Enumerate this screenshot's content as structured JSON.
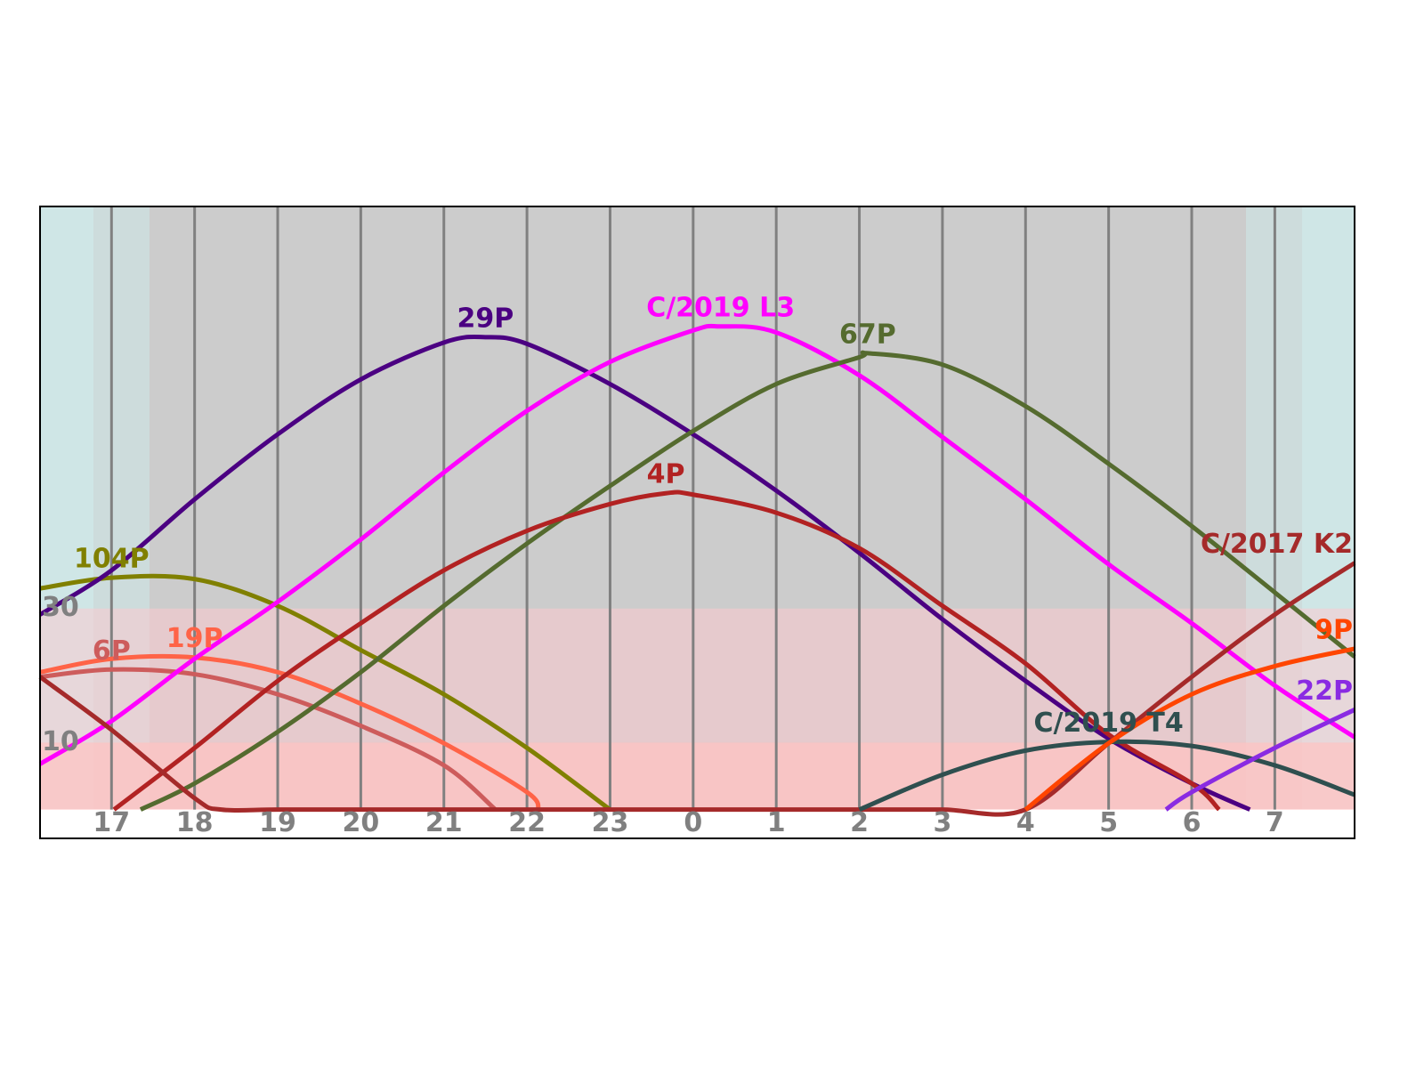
{
  "chart_data": {
    "type": "line",
    "xlim": [
      16.14,
      31.96
    ],
    "ylim": [
      -4.3,
      90
    ],
    "xticks": [
      17,
      18,
      19,
      20,
      21,
      22,
      23,
      {
        "value": 24,
        "label": "0"
      },
      {
        "value": 25,
        "label": "1"
      },
      {
        "value": 26,
        "label": "2"
      },
      {
        "value": 27,
        "label": "3"
      },
      {
        "value": 28,
        "label": "4"
      },
      {
        "value": 29,
        "label": "5"
      },
      {
        "value": 30,
        "label": "6"
      },
      {
        "value": 31,
        "label": "7"
      }
    ],
    "yticks": [
      10,
      30
    ],
    "grid": true,
    "series": [
      {
        "name": "104P",
        "color": "#808000",
        "x": [
          16.14,
          17,
          18,
          19,
          20,
          21,
          22,
          23
        ],
        "values": [
          33,
          34.6,
          34.4,
          30.4,
          23.8,
          17.2,
          9.2,
          0
        ]
      },
      {
        "name": "19P",
        "color": "#ff6347",
        "x": [
          16.14,
          17,
          18,
          19,
          20,
          21,
          22,
          22.14
        ],
        "values": [
          20.5,
          22.5,
          22.7,
          20.5,
          15.8,
          9.9,
          2.6,
          0
        ]
      },
      {
        "name": "6P",
        "color": "#cd5c5c",
        "x": [
          16.14,
          17,
          18,
          19,
          20,
          21,
          21.62
        ],
        "values": [
          19.8,
          20.9,
          20.2,
          17.2,
          12.5,
          6.6,
          0
        ]
      },
      {
        "name": "29P",
        "color": "#4b0082",
        "x": [
          16.14,
          17,
          18,
          19,
          20,
          21,
          21.5,
          22,
          23,
          24,
          25,
          26,
          27,
          28,
          29,
          30,
          30.7
        ],
        "values": [
          29.1,
          35.7,
          46.3,
          56,
          64.2,
          69.7,
          70.5,
          69.5,
          63.5,
          56,
          47.6,
          38.3,
          28.4,
          19.2,
          10.6,
          3.9,
          0
        ]
      },
      {
        "name": "C/2019 L3",
        "color": "#ff00ff",
        "x": [
          16.14,
          17,
          18,
          19,
          20,
          21,
          22,
          23,
          24,
          24.33,
          25,
          26,
          27,
          28,
          29,
          30,
          31,
          31.96
        ],
        "values": [
          6.8,
          13.2,
          22.5,
          31,
          40.3,
          50.3,
          59.5,
          66.8,
          71.5,
          72.1,
          71.2,
          64.8,
          55.6,
          46.3,
          36.6,
          27.8,
          18.5,
          10.8
        ]
      },
      {
        "name": "67P",
        "color": "#556b2f",
        "x": [
          17.35,
          18,
          19,
          20,
          21,
          22,
          23,
          24,
          25,
          26,
          26.1,
          27,
          28,
          29,
          30,
          31,
          31.96
        ],
        "values": [
          0,
          3.9,
          11.6,
          20.5,
          30.4,
          39.7,
          48.3,
          56.5,
          63.5,
          67.5,
          68.1,
          66.4,
          60.2,
          51.6,
          42.3,
          32.4,
          22.8
        ]
      },
      {
        "name": "4P",
        "color": "#b22222",
        "x": [
          17.03,
          18,
          19,
          20,
          21,
          22,
          23,
          23.67,
          24,
          25,
          26,
          27,
          28,
          29,
          30,
          30.33
        ],
        "values": [
          0,
          9.2,
          19.2,
          27.8,
          35.7,
          41.6,
          45.6,
          47.2,
          47,
          44.3,
          39,
          30.4,
          21.8,
          11.2,
          3.9,
          0
        ]
      },
      {
        "name": "C/2017 K2",
        "color": "#a52a2a",
        "x": [
          16.14,
          17,
          18,
          18.32,
          19,
          20,
          21,
          22,
          23,
          24,
          25,
          26,
          27,
          28,
          29,
          30,
          31,
          31.96
        ],
        "values": [
          19.8,
          11.9,
          1.7,
          0,
          0,
          0,
          0,
          0,
          0,
          0,
          0,
          0,
          0,
          0,
          9.9,
          19.8,
          29.1,
          36.8
        ]
      },
      {
        "name": "C/2019 T4",
        "color": "#2f4f4f",
        "x": [
          26,
          27,
          28,
          29,
          30,
          31,
          31.96
        ],
        "values": [
          0,
          5.2,
          8.8,
          10.1,
          9.5,
          6.6,
          2.2
        ]
      },
      {
        "name": "9P",
        "color": "#ff4500",
        "x": [
          28,
          29,
          30,
          31,
          31.96
        ],
        "values": [
          0,
          9.9,
          17.2,
          21.4,
          24
        ]
      },
      {
        "name": "22P",
        "color": "#8a2be2",
        "x": [
          29.69,
          30,
          31,
          31.96
        ],
        "values": [
          0,
          2.6,
          9.2,
          14.9
        ]
      }
    ]
  }
}
